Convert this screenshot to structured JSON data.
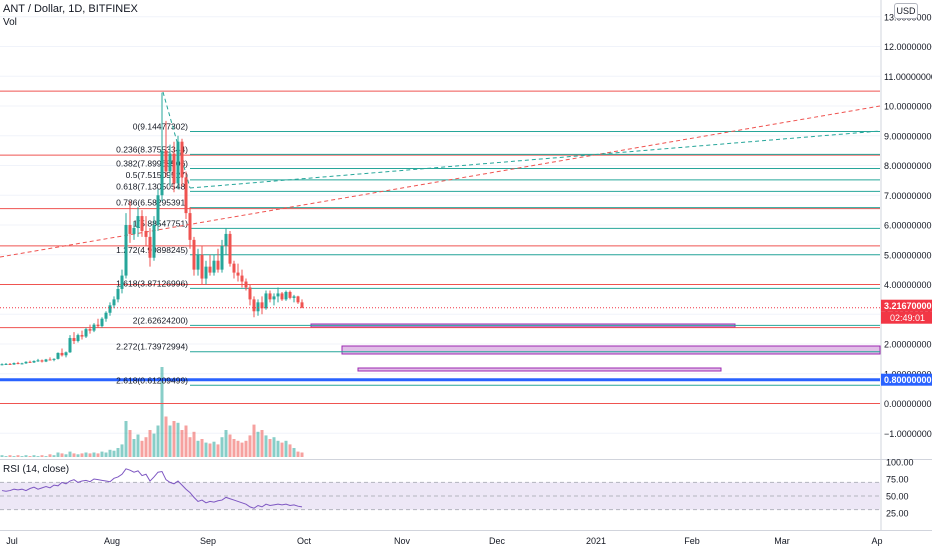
{
  "header": {
    "symbol_title": "ANT / Dollar, 1D, BITFINEX",
    "volume_label": "Vol",
    "currency_button": "USD"
  },
  "price_axis": {
    "ticks": [
      "13.0000000",
      "12.00000000",
      "11.00000000",
      "10.00000000",
      "9.00000000",
      "8.00000000",
      "7.00000000",
      "6.00000000",
      "5.00000000",
      "4.00000000",
      "3.00000000",
      "2.00000000",
      "1.00000000",
      "0.00000000",
      "−1.00000000"
    ],
    "tick_values": [
      13,
      12,
      11,
      10,
      9,
      8,
      7,
      6,
      5,
      4,
      3,
      2,
      1,
      0,
      -1
    ],
    "last_price_label": "3.21670000",
    "countdown_label": "02:49:01",
    "hline_price_label": "0.80000000",
    "last_price_color": "#f23645",
    "hline_color": "#2962ff"
  },
  "time_axis": {
    "labels": [
      "Jul",
      "Aug",
      "Sep",
      "Oct",
      "Nov",
      "Dec",
      "2021",
      "Feb",
      "Mar",
      "Ap"
    ]
  },
  "fibonacci": {
    "levels": [
      {
        "label": "0(9.14477302)",
        "price": 9.14477302
      },
      {
        "label": "0.236(8.37553344)",
        "price": 8.37553344
      },
      {
        "label": "0.382(7.89968506)",
        "price": 7.89968506
      },
      {
        "label": "0.5(7.51509527)",
        "price": 7.51509527
      },
      {
        "label": "0.618(7.13050548)",
        "price": 7.13050548
      },
      {
        "label": "0.786(6.58295391)",
        "price": 6.58295391
      },
      {
        "label": "1(5.88547751)",
        "price": 5.88547751
      },
      {
        "label": "1.272(4.99898245)",
        "price": 4.99898245
      },
      {
        "label": "1.618(3.87126996)",
        "price": 3.87126996
      },
      {
        "label": "2(2.62624200)",
        "price": 2.626242
      },
      {
        "label": "2.272(1.73972994)",
        "price": 1.73972994
      },
      {
        "label": "2.618(0.61209499)",
        "price": 0.61209499
      }
    ],
    "line_color": "#26a69a"
  },
  "horizontal_lines": {
    "red_prices": [
      10.5,
      8.35,
      6.55,
      5.3,
      4.0,
      2.55,
      0.0
    ],
    "red_color": "#ef5350",
    "blue_price": 0.8,
    "blue_color": "#2962ff"
  },
  "rsi": {
    "title": "RSI (14, close)",
    "ticks": [
      "100.00",
      "75.00",
      "50.00",
      "25.00"
    ],
    "tick_values": [
      100,
      75,
      50,
      25
    ],
    "upper": 70,
    "lower": 30,
    "line_color": "#7e57c2",
    "band_color": "#ede7f6"
  },
  "chart_data": {
    "type": "candlestick",
    "title": "ANT / Dollar, 1D, BITFINEX",
    "ylim": [
      -1.4,
      13.1
    ],
    "candles": [
      [
        1.3,
        1.35,
        1.28,
        1.32
      ],
      [
        1.32,
        1.36,
        1.3,
        1.33
      ],
      [
        1.33,
        1.36,
        1.3,
        1.31
      ],
      [
        1.31,
        1.38,
        1.3,
        1.36
      ],
      [
        1.36,
        1.4,
        1.32,
        1.34
      ],
      [
        1.34,
        1.37,
        1.31,
        1.35
      ],
      [
        1.35,
        1.42,
        1.33,
        1.4
      ],
      [
        1.4,
        1.44,
        1.36,
        1.38
      ],
      [
        1.38,
        1.45,
        1.36,
        1.43
      ],
      [
        1.43,
        1.5,
        1.4,
        1.45
      ],
      [
        1.45,
        1.48,
        1.38,
        1.41
      ],
      [
        1.41,
        1.5,
        1.39,
        1.48
      ],
      [
        1.48,
        1.55,
        1.45,
        1.47
      ],
      [
        1.47,
        1.52,
        1.42,
        1.5
      ],
      [
        1.5,
        1.72,
        1.48,
        1.7
      ],
      [
        1.7,
        1.85,
        1.58,
        1.62
      ],
      [
        1.62,
        1.75,
        1.55,
        1.72
      ],
      [
        1.72,
        2.3,
        1.7,
        2.2
      ],
      [
        2.2,
        2.4,
        2.0,
        2.1
      ],
      [
        2.1,
        2.35,
        2.05,
        2.3
      ],
      [
        2.3,
        2.45,
        2.15,
        2.25
      ],
      [
        2.25,
        2.55,
        2.2,
        2.5
      ],
      [
        2.5,
        2.65,
        2.35,
        2.45
      ],
      [
        2.45,
        2.7,
        2.4,
        2.65
      ],
      [
        2.65,
        2.85,
        2.55,
        2.6
      ],
      [
        2.6,
        2.9,
        2.55,
        2.85
      ],
      [
        2.85,
        3.1,
        2.75,
        3.05
      ],
      [
        3.05,
        3.4,
        2.95,
        3.3
      ],
      [
        3.3,
        3.6,
        3.2,
        3.5
      ],
      [
        3.5,
        3.95,
        3.4,
        3.85
      ],
      [
        3.85,
        4.5,
        3.7,
        4.3
      ],
      [
        4.3,
        6.4,
        4.2,
        6.0
      ],
      [
        6.0,
        6.8,
        5.4,
        5.7
      ],
      [
        5.7,
        6.1,
        5.5,
        5.9
      ],
      [
        5.9,
        6.6,
        5.6,
        6.3
      ],
      [
        6.3,
        6.5,
        5.6,
        5.8
      ],
      [
        5.8,
        6.3,
        5.3,
        5.6
      ],
      [
        5.6,
        5.9,
        4.6,
        4.9
      ],
      [
        4.9,
        6.3,
        4.8,
        6.0
      ],
      [
        6.0,
        7.2,
        5.8,
        7.0
      ],
      [
        7.0,
        10.45,
        6.8,
        8.5
      ],
      [
        8.5,
        9.5,
        7.6,
        7.8
      ],
      [
        7.8,
        8.7,
        7.3,
        8.4
      ],
      [
        8.4,
        8.8,
        7.1,
        7.4
      ],
      [
        7.4,
        9.0,
        7.2,
        8.8
      ],
      [
        8.8,
        8.9,
        7.3,
        7.6
      ],
      [
        7.6,
        7.8,
        6.2,
        6.4
      ],
      [
        6.4,
        6.6,
        5.2,
        5.5
      ],
      [
        5.5,
        5.6,
        4.3,
        4.5
      ],
      [
        4.5,
        5.2,
        4.3,
        5.0
      ],
      [
        5.0,
        5.3,
        4.0,
        4.2
      ],
      [
        4.2,
        4.8,
        4.0,
        4.6
      ],
      [
        4.6,
        5.0,
        4.3,
        4.4
      ],
      [
        4.4,
        5.0,
        4.3,
        4.8
      ],
      [
        4.8,
        5.2,
        4.4,
        4.5
      ],
      [
        4.5,
        5.5,
        4.4,
        5.3
      ],
      [
        5.3,
        5.9,
        5.0,
        5.7
      ],
      [
        5.7,
        5.8,
        4.6,
        4.7
      ],
      [
        4.7,
        4.8,
        4.2,
        4.4
      ],
      [
        4.4,
        4.7,
        4.1,
        4.3
      ],
      [
        4.3,
        4.5,
        3.9,
        4.1
      ],
      [
        4.1,
        4.2,
        3.8,
        3.9
      ],
      [
        3.9,
        4.0,
        3.3,
        3.5
      ],
      [
        3.5,
        3.6,
        2.9,
        3.1
      ],
      [
        3.1,
        3.5,
        2.95,
        3.4
      ],
      [
        3.4,
        3.6,
        3.0,
        3.2
      ],
      [
        3.2,
        3.8,
        3.15,
        3.7
      ],
      [
        3.7,
        3.8,
        3.4,
        3.5
      ],
      [
        3.5,
        3.7,
        3.3,
        3.6
      ],
      [
        3.6,
        3.9,
        3.4,
        3.7
      ],
      [
        3.7,
        3.75,
        3.45,
        3.5
      ],
      [
        3.5,
        3.8,
        3.45,
        3.75
      ],
      [
        3.75,
        3.8,
        3.5,
        3.55
      ],
      [
        3.55,
        3.65,
        3.4,
        3.6
      ],
      [
        3.6,
        3.62,
        3.35,
        3.4
      ],
      [
        3.4,
        3.5,
        3.2,
        3.22
      ]
    ],
    "volume": [
      2,
      1,
      2,
      1,
      2,
      1,
      2,
      1,
      2,
      1,
      2,
      1,
      3,
      2,
      5,
      4,
      3,
      6,
      4,
      3,
      4,
      5,
      4,
      5,
      4,
      6,
      5,
      8,
      7,
      10,
      14,
      40,
      30,
      20,
      25,
      18,
      22,
      30,
      26,
      35,
      100,
      45,
      35,
      40,
      38,
      30,
      35,
      22,
      28,
      18,
      20,
      16,
      15,
      17,
      14,
      22,
      30,
      25,
      20,
      18,
      16,
      18,
      24,
      36,
      28,
      30,
      24,
      20,
      22,
      18,
      16,
      18,
      14,
      10,
      6,
      5
    ],
    "rsi": [
      58,
      57,
      58,
      60,
      59,
      60,
      58,
      61,
      63,
      60,
      62,
      64,
      62,
      66,
      65,
      70,
      68,
      72,
      74,
      70,
      72,
      73,
      71,
      75,
      74,
      73,
      72,
      71,
      76,
      78,
      82,
      90,
      88,
      85,
      87,
      80,
      82,
      72,
      78,
      85,
      86,
      74,
      70,
      68,
      72,
      66,
      60,
      55,
      48,
      42,
      44,
      40,
      42,
      41,
      43,
      44,
      48,
      46,
      44,
      42,
      40,
      38,
      34,
      32,
      36,
      34,
      38,
      36,
      37,
      38,
      37,
      38,
      36,
      37,
      35,
      34
    ],
    "fib_levels": [
      9.14477302,
      8.37553344,
      7.89968506,
      7.51509527,
      7.13050548,
      6.58295391,
      5.88547751,
      4.99898245,
      3.87126996,
      2.626242,
      1.73972994,
      0.61209499
    ]
  }
}
